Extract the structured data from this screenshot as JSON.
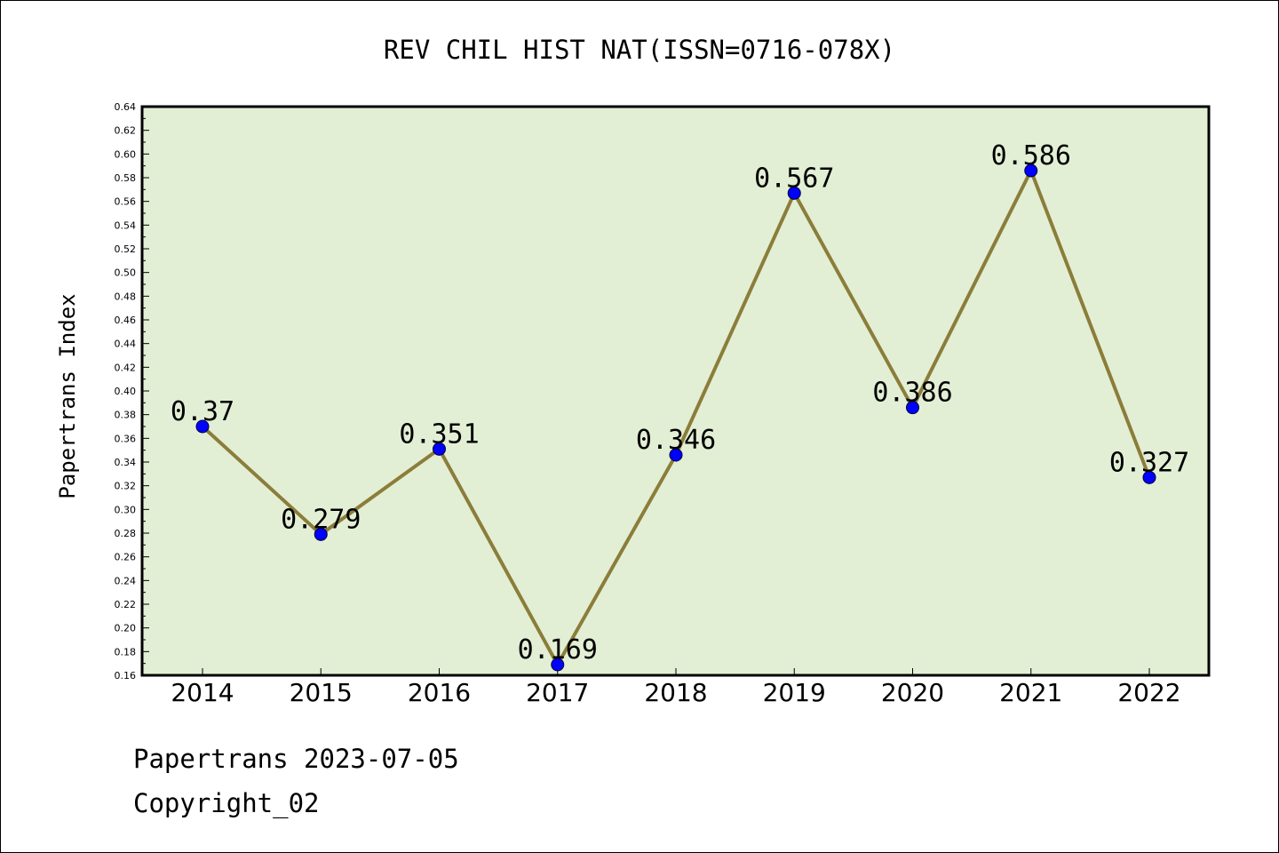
{
  "chart_data": {
    "type": "line",
    "title": "REV CHIL HIST NAT(ISSN=0716-078X)",
    "xlabel": "",
    "ylabel": "Papertrans Index",
    "categories": [
      "2014",
      "2015",
      "2016",
      "2017",
      "2018",
      "2019",
      "2020",
      "2021",
      "2022"
    ],
    "series": [
      {
        "values": [
          0.37,
          0.279,
          0.351,
          0.169,
          0.346,
          0.567,
          0.386,
          0.586,
          0.327
        ]
      }
    ],
    "data_labels": [
      "0.37",
      "0.279",
      "0.351",
      "0.169",
      "0.346",
      "0.567",
      "0.386",
      "0.586",
      "0.327"
    ],
    "ylim": [
      0.16,
      0.64
    ],
    "ytick_step": 0.02,
    "grid": false,
    "colors": {
      "plot_bg": "#e2efd5",
      "line": "#8b7d3a",
      "marker": "#0000ff"
    }
  },
  "footer": {
    "line1": "Papertrans 2023-07-05",
    "line2": "Copyright_02"
  }
}
